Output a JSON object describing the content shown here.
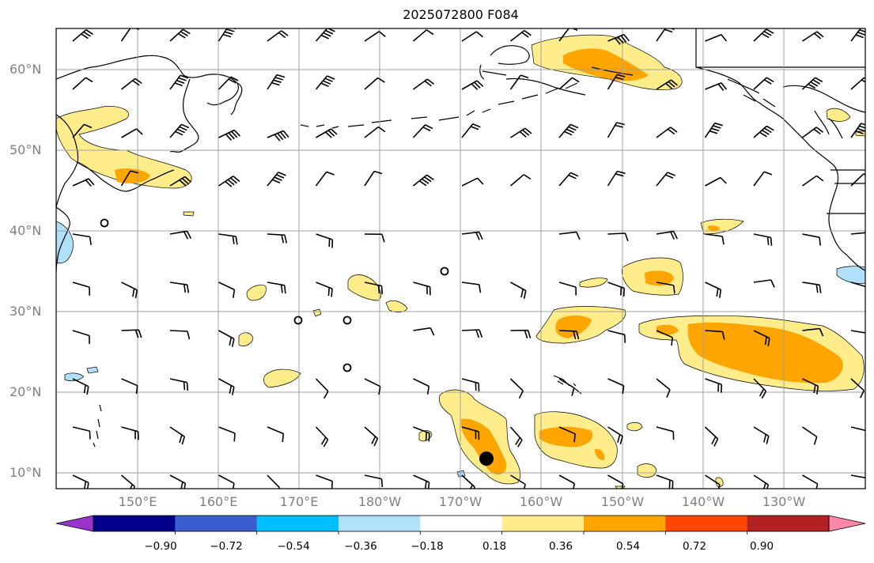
{
  "title": "2025072800 F084",
  "map": {
    "lat_labels": [
      "60°N",
      "50°N",
      "40°N",
      "30°N",
      "20°N",
      "10°N"
    ],
    "lon_labels": [
      "150°E",
      "160°E",
      "170°E",
      "180°W",
      "170°W",
      "160°W",
      "150°W",
      "140°W",
      "130°W"
    ],
    "features": [
      "coastlines",
      "wind-barbs",
      "shaded-contours",
      "marker"
    ]
  },
  "colorbar": {
    "levels": [
      "−0.90",
      "−0.72",
      "−0.54",
      "−0.36",
      "−0.18",
      "0.18",
      "0.36",
      "0.54",
      "0.72",
      "0.90"
    ],
    "colors": [
      "#9933cc",
      "#00008b",
      "#3a5fcd",
      "#00bfff",
      "#b0e0fa",
      "#ffffff",
      "#ffec8b",
      "#ffa500",
      "#ff4500",
      "#b22222",
      "#ff88aa"
    ]
  },
  "colors": {
    "light_yellow": "#ffec8b",
    "orange": "#ffa500",
    "light_blue": "#b0e0fa",
    "grid": "#a0a0a0",
    "label_gray": "#808080"
  }
}
